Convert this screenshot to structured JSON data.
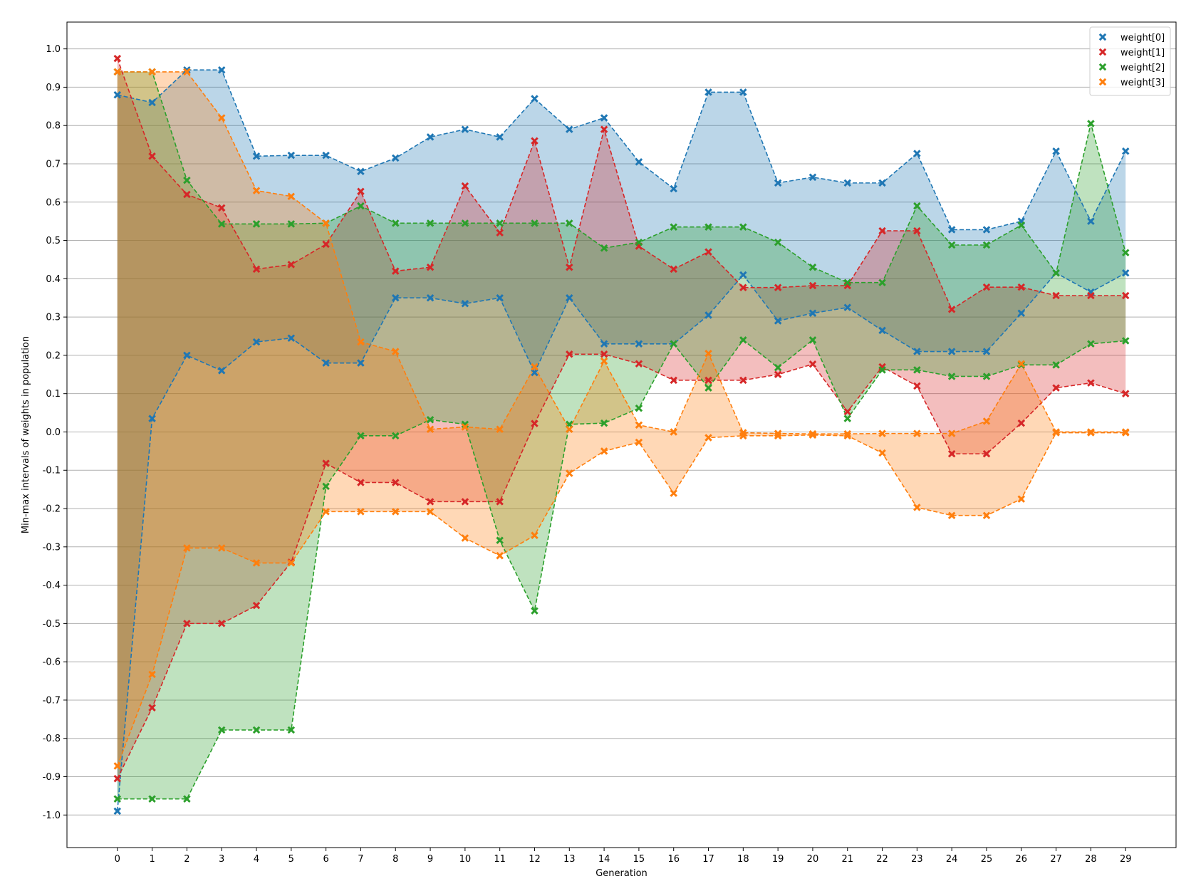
{
  "chart_data": {
    "type": "area",
    "xlabel": "Generation",
    "ylabel": "Min-max intervals of weights in population",
    "x": [
      0,
      1,
      2,
      3,
      4,
      5,
      6,
      7,
      8,
      9,
      10,
      11,
      12,
      13,
      14,
      15,
      16,
      17,
      18,
      19,
      20,
      21,
      22,
      23,
      24,
      25,
      26,
      27,
      28,
      29
    ],
    "xlim": [
      -1.45,
      30.45
    ],
    "ylim": [
      -1.085,
      1.07
    ],
    "yticks": [
      -1.0,
      -0.9,
      -0.8,
      -0.7,
      -0.6,
      -0.5,
      -0.4,
      -0.3,
      -0.2,
      -0.1,
      0.0,
      0.1,
      0.2,
      0.3,
      0.4,
      0.5,
      0.6,
      0.7,
      0.8,
      0.9,
      1.0
    ],
    "grid": "y",
    "legend_position": "top-right",
    "series": [
      {
        "name": "weight[0]",
        "color": "#1f77b4",
        "max": [
          0.88,
          0.86,
          0.945,
          0.945,
          0.72,
          0.722,
          0.722,
          0.68,
          0.715,
          0.77,
          0.79,
          0.77,
          0.87,
          0.79,
          0.82,
          0.705,
          0.635,
          0.887,
          0.887,
          0.65,
          0.665,
          0.65,
          0.65,
          0.727,
          0.528,
          0.528,
          0.55,
          0.733,
          0.55,
          0.733
        ],
        "min": [
          -0.99,
          0.035,
          0.2,
          0.16,
          0.235,
          0.245,
          0.18,
          0.18,
          0.35,
          0.35,
          0.335,
          0.35,
          0.155,
          0.35,
          0.23,
          0.23,
          0.23,
          0.305,
          0.41,
          0.29,
          0.31,
          0.325,
          0.265,
          0.21,
          0.21,
          0.21,
          0.31,
          0.415,
          0.365,
          0.415
        ]
      },
      {
        "name": "weight[1]",
        "color": "#d62728",
        "max": [
          0.975,
          0.72,
          0.62,
          0.585,
          0.425,
          0.437,
          0.49,
          0.628,
          0.42,
          0.43,
          0.642,
          0.52,
          0.76,
          0.43,
          0.79,
          0.485,
          0.425,
          0.47,
          0.377,
          0.377,
          0.382,
          0.382,
          0.525,
          0.525,
          0.32,
          0.378,
          0.378,
          0.356,
          0.356,
          0.356
        ],
        "min": [
          -0.905,
          -0.72,
          -0.5,
          -0.5,
          -0.453,
          -0.34,
          -0.082,
          -0.132,
          -0.132,
          -0.182,
          -0.182,
          -0.182,
          0.022,
          0.203,
          0.203,
          0.178,
          0.135,
          0.135,
          0.135,
          0.15,
          0.177,
          0.053,
          0.17,
          0.12,
          -0.057,
          -0.057,
          0.023,
          0.115,
          0.128,
          0.1
        ]
      },
      {
        "name": "weight[2]",
        "color": "#2ca02c",
        "max": [
          0.94,
          0.94,
          0.657,
          0.543,
          0.543,
          0.543,
          0.545,
          0.59,
          0.545,
          0.545,
          0.545,
          0.545,
          0.545,
          0.545,
          0.48,
          0.495,
          0.535,
          0.535,
          0.535,
          0.495,
          0.43,
          0.39,
          0.39,
          0.59,
          0.488,
          0.488,
          0.54,
          0.415,
          0.805,
          0.468
        ],
        "min": [
          -0.958,
          -0.958,
          -0.958,
          -0.778,
          -0.778,
          -0.778,
          -0.142,
          -0.01,
          -0.01,
          0.032,
          0.02,
          -0.283,
          -0.467,
          0.02,
          0.023,
          0.062,
          0.23,
          0.115,
          0.24,
          0.168,
          0.24,
          0.035,
          0.162,
          0.162,
          0.145,
          0.145,
          0.175,
          0.175,
          0.23,
          0.238
        ]
      },
      {
        "name": "weight[3]",
        "color": "#ff7f0e",
        "max": [
          0.94,
          0.94,
          0.94,
          0.82,
          0.63,
          0.615,
          0.545,
          0.235,
          0.21,
          0.007,
          0.013,
          0.007,
          0.17,
          0.007,
          0.185,
          0.018,
          0.0,
          0.205,
          -0.002,
          -0.004,
          -0.005,
          -0.005,
          -0.004,
          -0.004,
          -0.004,
          0.028,
          0.178,
          0.0,
          0.0,
          0.0
        ],
        "min": [
          -0.872,
          -0.633,
          -0.303,
          -0.303,
          -0.342,
          -0.342,
          -0.208,
          -0.208,
          -0.208,
          -0.208,
          -0.277,
          -0.323,
          -0.27,
          -0.108,
          -0.05,
          -0.027,
          -0.16,
          -0.015,
          -0.01,
          -0.01,
          -0.008,
          -0.01,
          -0.055,
          -0.197,
          -0.218,
          -0.218,
          -0.175,
          -0.002,
          -0.002,
          -0.002
        ]
      }
    ]
  }
}
